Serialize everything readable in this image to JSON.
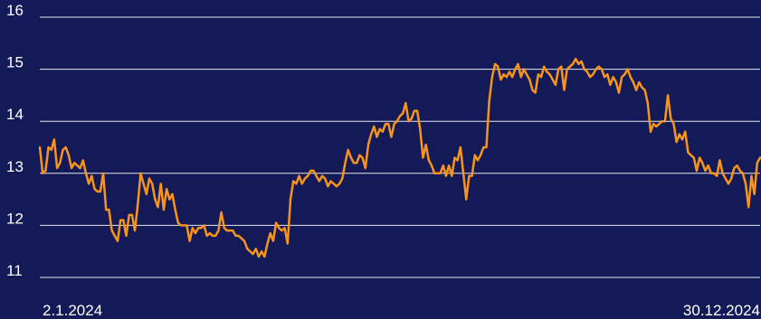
{
  "chart_data": {
    "type": "line",
    "title": "",
    "xlabel": "",
    "ylabel": "",
    "grid": true,
    "ylim": [
      11,
      16
    ],
    "yticks": [
      11,
      12,
      13,
      14,
      15,
      16
    ],
    "xtick_labels": [
      "2.1.2024",
      "30.12.2024"
    ],
    "colors": {
      "background": "#131a57",
      "line": "#f7941d",
      "grid": "#ffffff",
      "text": "#ffffff"
    },
    "series": [
      {
        "values": [
          13.5,
          13.0,
          13.05,
          13.5,
          13.45,
          13.65,
          13.1,
          13.2,
          13.45,
          13.5,
          13.35,
          13.1,
          13.2,
          13.15,
          13.1,
          13.25,
          13.0,
          12.8,
          12.95,
          12.7,
          12.65,
          12.65,
          13.0,
          12.3,
          12.3,
          11.9,
          11.8,
          11.7,
          12.1,
          12.1,
          11.8,
          12.2,
          12.2,
          11.9,
          12.4,
          13.0,
          12.8,
          12.6,
          12.9,
          12.8,
          12.5,
          12.35,
          12.8,
          12.3,
          12.7,
          12.5,
          12.6,
          12.3,
          12.05,
          12.0,
          12.0,
          12.0,
          11.7,
          11.95,
          11.85,
          11.95,
          11.95,
          12.0,
          11.8,
          11.85,
          11.8,
          11.8,
          11.9,
          12.25,
          11.95,
          11.9,
          11.9,
          11.9,
          11.8,
          11.8,
          11.75,
          11.7,
          11.55,
          11.5,
          11.45,
          11.55,
          11.4,
          11.5,
          11.4,
          11.65,
          11.85,
          11.7,
          12.05,
          11.95,
          11.9,
          11.95,
          11.65,
          12.5,
          12.85,
          12.8,
          12.95,
          12.8,
          12.9,
          12.95,
          13.05,
          13.05,
          12.95,
          12.85,
          12.95,
          12.9,
          12.75,
          12.85,
          12.8,
          12.75,
          12.8,
          12.9,
          13.2,
          13.45,
          13.3,
          13.2,
          13.2,
          13.35,
          13.3,
          13.1,
          13.55,
          13.75,
          13.9,
          13.7,
          13.85,
          13.8,
          13.95,
          13.95,
          13.7,
          13.95,
          14.0,
          14.1,
          14.15,
          14.35,
          14.0,
          14.05,
          14.2,
          14.2,
          13.85,
          13.3,
          13.55,
          13.25,
          13.15,
          13.0,
          13.0,
          13.0,
          13.15,
          12.95,
          13.15,
          12.95,
          13.3,
          13.25,
          13.5,
          13.0,
          12.5,
          12.95,
          12.95,
          13.35,
          13.25,
          13.35,
          13.5,
          13.5,
          14.4,
          14.85,
          15.1,
          15.05,
          14.8,
          14.9,
          14.85,
          14.95,
          14.85,
          15.0,
          15.1,
          14.85,
          15.0,
          14.9,
          14.8,
          14.6,
          14.55,
          14.9,
          14.85,
          15.05,
          14.95,
          14.9,
          14.8,
          14.7,
          15.0,
          15.05,
          14.6,
          15.0,
          15.05,
          15.1,
          15.2,
          15.1,
          15.15,
          15.0,
          14.95,
          14.85,
          14.9,
          15.0,
          15.05,
          15.0,
          14.85,
          14.9,
          14.7,
          14.85,
          14.75,
          14.55,
          14.85,
          14.9,
          15.0,
          14.85,
          14.75,
          14.6,
          14.75,
          14.65,
          14.6,
          14.35,
          13.8,
          13.95,
          13.9,
          13.95,
          14.0,
          14.0,
          14.5,
          14.05,
          13.95,
          13.6,
          13.75,
          13.65,
          13.8,
          13.4,
          13.35,
          13.3,
          13.05,
          13.3,
          13.2,
          13.05,
          13.15,
          13.0,
          13.0,
          12.95,
          13.25,
          13.0,
          12.9,
          12.8,
          12.9,
          13.1,
          13.15,
          13.05,
          13.0,
          12.8,
          12.35,
          12.95,
          12.6,
          13.2,
          13.3
        ]
      }
    ]
  }
}
